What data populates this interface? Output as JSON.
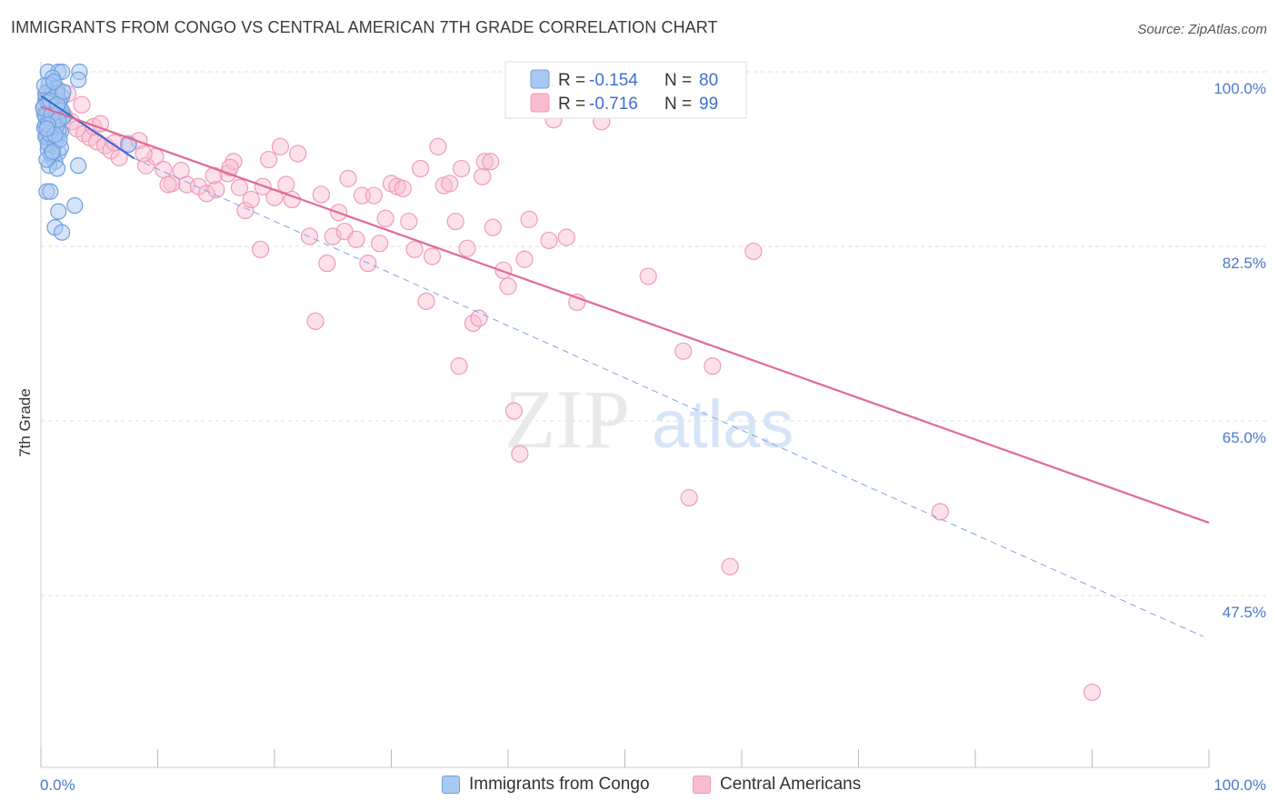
{
  "title": "IMMIGRANTS FROM CONGO VS CENTRAL AMERICAN 7TH GRADE CORRELATION CHART",
  "source": "Source: ZipAtlas.com",
  "watermark": {
    "zip": "ZIP",
    "atlas": "atlas"
  },
  "legend_box": {
    "rows": [
      {
        "r_label": "R = ",
        "r_value": "-0.154",
        "n_label": "N = ",
        "n_value": "80"
      },
      {
        "r_label": "R = ",
        "r_value": "-0.716",
        "n_label": "N = ",
        "n_value": "99"
      }
    ]
  },
  "bottom_legend": [
    {
      "label": "Immigrants from Congo"
    },
    {
      "label": "Central Americans"
    }
  ],
  "colors": {
    "congo_fill": "#a9c8f2",
    "congo_stroke": "#6f9fe0",
    "congo_line": "#3b66d1",
    "central_fill": "#f8bcd0",
    "central_stroke": "#ef9bb8",
    "central_line": "#e06a93",
    "grid": "#dddddd",
    "tick_label": "#4a78c8"
  },
  "chart_data": {
    "type": "scatter",
    "title": "IMMIGRANTS FROM CONGO VS CENTRAL AMERICAN 7TH GRADE CORRELATION CHART",
    "xlabel": "",
    "ylabel": "7th Grade",
    "xlim": [
      0,
      100
    ],
    "ylim": [
      28.5,
      101.5
    ],
    "x_tick_labels": [
      "0.0%",
      "100.0%"
    ],
    "y_ticks": [
      100,
      82.5,
      65,
      47.5
    ],
    "y_tick_labels": [
      "100.0%",
      "82.5%",
      "65.0%",
      "47.5%"
    ],
    "grid": "horizontal dashed",
    "legend_placement": "top-center",
    "series": [
      {
        "name": "Immigrants from Congo",
        "R": -0.154,
        "N": 80,
        "trend": {
          "x": [
            0,
            8
          ],
          "y": [
            97.6,
            91.3
          ]
        },
        "trend_extension": {
          "x": [
            8,
            99.5
          ],
          "y": [
            91.3,
            43.4
          ]
        },
        "points": [
          [
            0.6,
            100
          ],
          [
            1.5,
            100
          ],
          [
            1.8,
            100
          ],
          [
            3.3,
            100
          ],
          [
            3.2,
            99.2
          ],
          [
            1,
            99.4
          ],
          [
            0.7,
            98.7
          ],
          [
            1.2,
            98.4
          ],
          [
            0.5,
            98
          ],
          [
            1.4,
            98.3
          ],
          [
            0.9,
            97.7
          ],
          [
            1.8,
            97.5
          ],
          [
            0.4,
            97.2
          ],
          [
            1.1,
            96.8
          ],
          [
            1.6,
            96.5
          ],
          [
            0.8,
            96.3
          ],
          [
            1.3,
            96
          ],
          [
            0.3,
            95.8
          ],
          [
            1.9,
            95.6
          ],
          [
            0.6,
            95.3
          ],
          [
            1.2,
            95
          ],
          [
            0.4,
            94.6
          ],
          [
            0.9,
            94.2
          ],
          [
            1.7,
            94
          ],
          [
            0.5,
            93.6
          ],
          [
            1.4,
            93.3
          ],
          [
            0.8,
            92.9
          ],
          [
            1.1,
            92.6
          ],
          [
            0.6,
            92.2
          ],
          [
            1.5,
            91.9
          ],
          [
            0.9,
            91.5
          ],
          [
            1.2,
            91
          ],
          [
            0.7,
            90.6
          ],
          [
            1.4,
            90.3
          ],
          [
            3.2,
            90.6
          ],
          [
            0.5,
            88
          ],
          [
            0.8,
            88
          ],
          [
            1.5,
            86
          ],
          [
            2.9,
            86.6
          ],
          [
            1.2,
            84.4
          ],
          [
            1.8,
            83.9
          ],
          [
            7.5,
            92.7
          ],
          [
            0.4,
            97.8
          ],
          [
            1,
            97.3
          ],
          [
            1.6,
            97
          ],
          [
            0.3,
            96.6
          ],
          [
            1.3,
            96.2
          ],
          [
            0.5,
            95.9
          ],
          [
            1.9,
            95.4
          ],
          [
            0.7,
            95
          ],
          [
            1.1,
            94.8
          ],
          [
            0.3,
            94.4
          ],
          [
            1.5,
            94.1
          ],
          [
            0.8,
            93.9
          ],
          [
            0.4,
            93.5
          ],
          [
            1.2,
            93
          ],
          [
            0.6,
            92.8
          ],
          [
            1.7,
            92.4
          ],
          [
            0.9,
            91.8
          ],
          [
            0.5,
            91.2
          ],
          [
            1.4,
            97.9
          ],
          [
            0.6,
            96.9
          ],
          [
            1.8,
            96.1
          ],
          [
            0.4,
            95.5
          ],
          [
            1,
            94.9
          ],
          [
            1.3,
            94.5
          ],
          [
            0.7,
            93.8
          ],
          [
            1.6,
            93.2
          ],
          [
            0.2,
            96.4
          ],
          [
            1.9,
            98
          ],
          [
            0.3,
            98.6
          ],
          [
            1.1,
            99
          ],
          [
            0.9,
            95.7
          ],
          [
            1.5,
            95.2
          ],
          [
            0.6,
            94.7
          ],
          [
            1.2,
            93.7
          ],
          [
            0.8,
            97.1
          ],
          [
            1.4,
            96.7
          ],
          [
            0.5,
            94.3
          ],
          [
            1,
            92
          ]
        ]
      },
      {
        "name": "Central Americans",
        "R": -0.716,
        "N": 99,
        "trend": {
          "x": [
            0,
            100
          ],
          "y": [
            96.5,
            54.8
          ]
        },
        "points": [
          [
            0.5,
            97.5
          ],
          [
            1,
            96.6
          ],
          [
            1.5,
            96.2
          ],
          [
            2,
            95.6
          ],
          [
            2.6,
            95
          ],
          [
            3.1,
            94.3
          ],
          [
            3.7,
            93.8
          ],
          [
            4.2,
            93.4
          ],
          [
            4.8,
            93
          ],
          [
            5.5,
            92.6
          ],
          [
            6,
            92.1
          ],
          [
            6.7,
            91.4
          ],
          [
            7.5,
            92.8
          ],
          [
            8.4,
            93.1
          ],
          [
            9,
            90.6
          ],
          [
            9.8,
            91.5
          ],
          [
            10.5,
            90.2
          ],
          [
            11.2,
            88.8
          ],
          [
            12,
            90.1
          ],
          [
            12.5,
            88.7
          ],
          [
            13.5,
            88.5
          ],
          [
            14.2,
            87.8
          ],
          [
            15,
            88.2
          ],
          [
            16,
            89.8
          ],
          [
            16.5,
            91
          ],
          [
            17,
            88.4
          ],
          [
            17.5,
            86.1
          ],
          [
            18,
            87.2
          ],
          [
            18.8,
            82.2
          ],
          [
            19,
            88.5
          ],
          [
            19.5,
            91.2
          ],
          [
            20,
            87.4
          ],
          [
            20.5,
            92.5
          ],
          [
            21,
            88.7
          ],
          [
            21.5,
            87.2
          ],
          [
            22,
            91.8
          ],
          [
            23,
            83.5
          ],
          [
            23.5,
            75
          ],
          [
            24,
            87.7
          ],
          [
            24.5,
            80.8
          ],
          [
            25,
            83.5
          ],
          [
            25.5,
            85.9
          ],
          [
            26,
            84
          ],
          [
            26.3,
            89.3
          ],
          [
            27,
            83.2
          ],
          [
            27.5,
            87.6
          ],
          [
            28,
            80.8
          ],
          [
            28.5,
            87.6
          ],
          [
            29,
            82.8
          ],
          [
            29.5,
            85.3
          ],
          [
            30,
            88.8
          ],
          [
            30.5,
            88.5
          ],
          [
            31,
            88.3
          ],
          [
            31.5,
            85
          ],
          [
            32,
            82.2
          ],
          [
            32.5,
            90.3
          ],
          [
            33,
            77
          ],
          [
            33.5,
            81.5
          ],
          [
            34,
            92.5
          ],
          [
            34.5,
            88.6
          ],
          [
            35,
            88.8
          ],
          [
            35.5,
            85
          ],
          [
            35.8,
            70.5
          ],
          [
            36,
            90.3
          ],
          [
            36.5,
            82.3
          ],
          [
            37,
            74.8
          ],
          [
            37.5,
            75.3
          ],
          [
            37.8,
            89.5
          ],
          [
            38,
            91
          ],
          [
            38.5,
            91
          ],
          [
            38.7,
            84.4
          ],
          [
            39.6,
            80.1
          ],
          [
            40,
            78.5
          ],
          [
            40.5,
            66
          ],
          [
            41,
            61.7
          ],
          [
            41.4,
            81.2
          ],
          [
            41.8,
            85.2
          ],
          [
            43.5,
            83.1
          ],
          [
            43.9,
            95.2
          ],
          [
            45,
            83.4
          ],
          [
            45.9,
            76.9
          ],
          [
            48,
            95
          ],
          [
            52,
            79.5
          ],
          [
            55,
            72
          ],
          [
            55.5,
            57.3
          ],
          [
            57.5,
            70.5
          ],
          [
            59,
            50.4
          ],
          [
            61,
            82
          ],
          [
            77,
            55.9
          ],
          [
            90,
            37.8
          ],
          [
            4.5,
            94.5
          ],
          [
            6.3,
            92.9
          ],
          [
            8.8,
            91.8
          ],
          [
            10.9,
            88.7
          ],
          [
            14.8,
            89.6
          ],
          [
            16.2,
            90.4
          ],
          [
            2.3,
            97.8
          ],
          [
            3.5,
            96.7
          ],
          [
            5.1,
            94.8
          ]
        ]
      }
    ]
  }
}
